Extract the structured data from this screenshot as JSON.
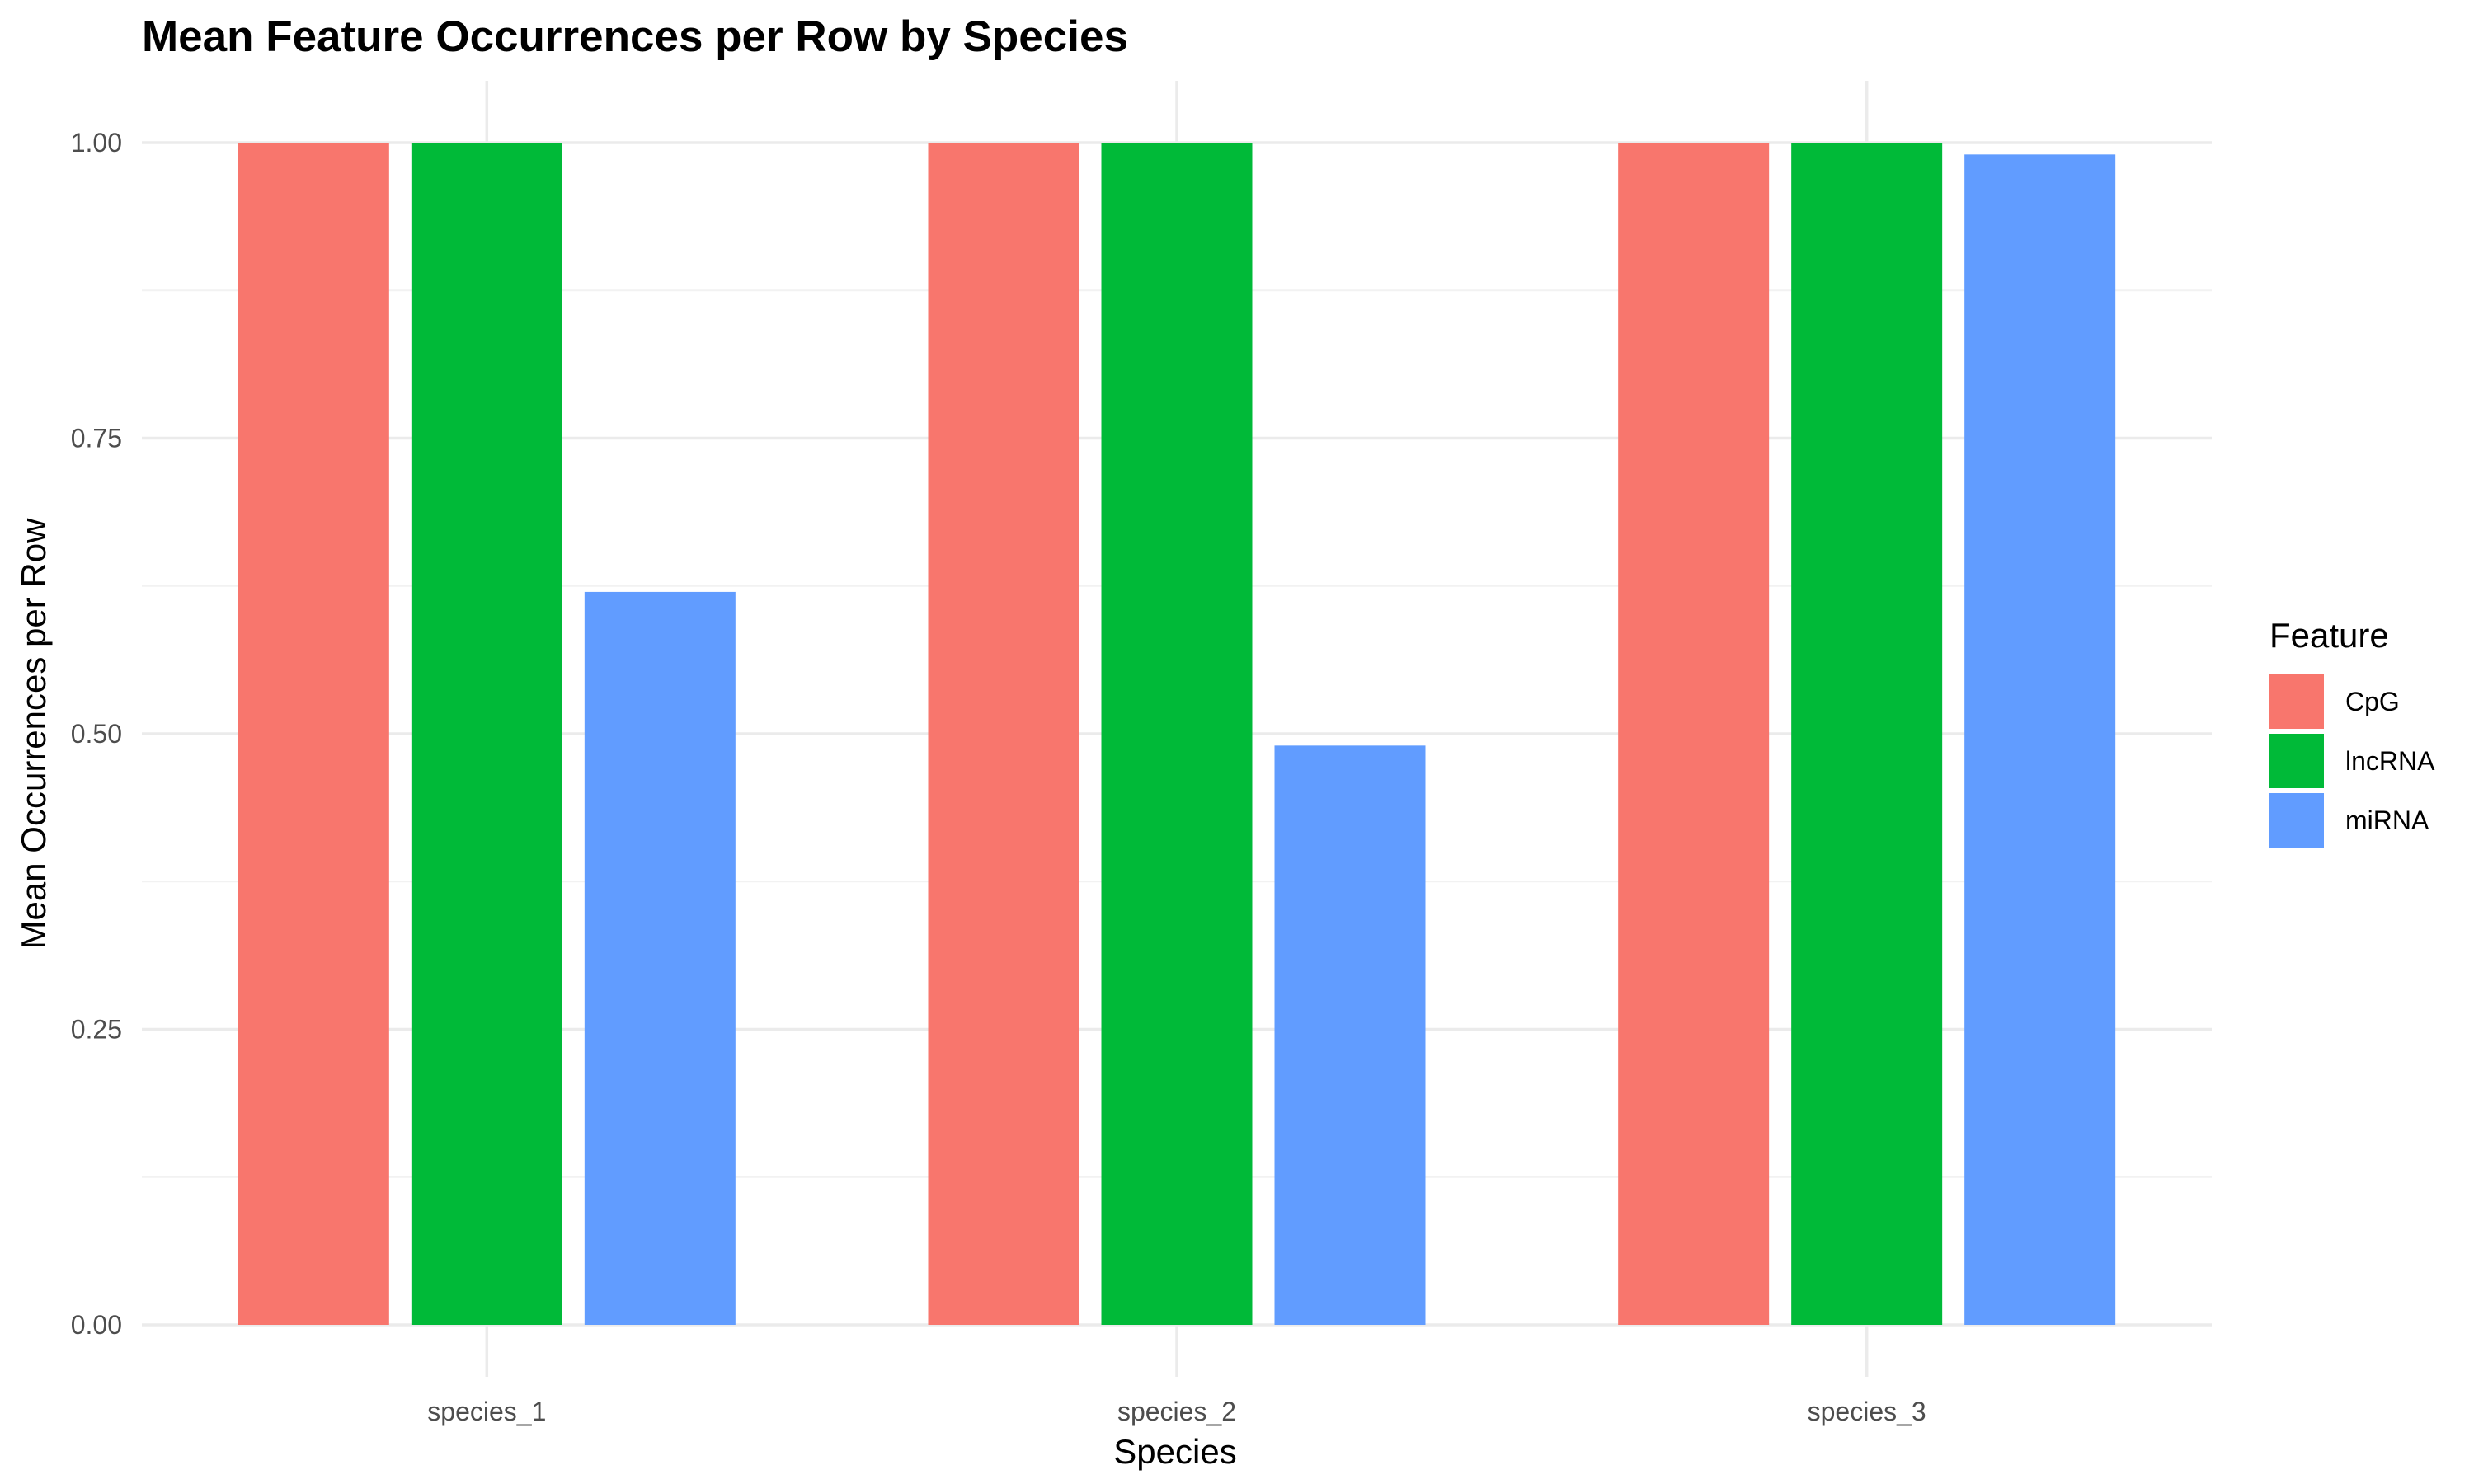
{
  "chart_data": {
    "type": "bar",
    "title": "Mean Feature Occurrences per Row by Species",
    "xlabel": "Species",
    "ylabel": "Mean Occurrences per Row",
    "categories": [
      "species_1",
      "species_2",
      "species_3"
    ],
    "series": [
      {
        "name": "CpG",
        "color": "#F8766D",
        "values": [
          1.0,
          1.0,
          1.0
        ]
      },
      {
        "name": "lncRNA",
        "color": "#00BA38",
        "values": [
          1.0,
          1.0,
          1.0
        ]
      },
      {
        "name": "miRNA",
        "color": "#619CFF",
        "values": [
          0.62,
          0.49,
          0.99
        ]
      }
    ],
    "ylim": [
      0,
      1.05
    ],
    "yticks": [
      0,
      0.25,
      0.5,
      0.75,
      1.0
    ],
    "ytick_labels": [
      "0.00",
      "0.25",
      "0.50",
      "0.75",
      "1.00"
    ],
    "legend_title": "Feature",
    "legend_position": "right",
    "grid": true
  }
}
